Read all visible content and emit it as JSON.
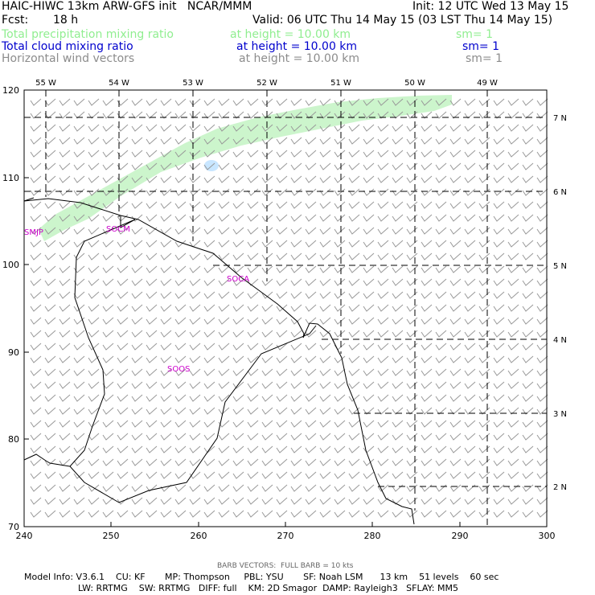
{
  "header": {
    "model_title": "HAIC-HIWC 13km ARW-GFS init   NCAR/MMM",
    "init": "Init: 12 UTC Wed 13 May 15",
    "fcst_label": "Fcst:",
    "fcst_value": "18 h",
    "valid": "Valid: 06 UTC Thu 14 May 15 (03 LST Thu 14 May 15)"
  },
  "fields": [
    {
      "name": "Total precipitation mixing ratio",
      "height": "at height = 10.00 km",
      "sm": "sm= 1",
      "color": "#90ee90"
    },
    {
      "name": "Total cloud mixing ratio",
      "height": "at height = 10.00 km",
      "sm": "sm= 1",
      "color": "#0000cd"
    },
    {
      "name": "Horizontal wind vectors",
      "height": "at height = 10.00 km",
      "sm": "sm= 1",
      "color": "#8c8c8c"
    }
  ],
  "map": {
    "top_labels": [
      "55 W",
      "54 W",
      "53 W",
      "52 W",
      "51 W",
      "50 W",
      "49 W"
    ],
    "right_labels": [
      "7 N",
      "6 N",
      "5 N",
      "4 N",
      "3 N",
      "2 N"
    ],
    "left_ticks": [
      "120",
      "110",
      "100",
      "90",
      "80",
      "70"
    ],
    "bottom_ticks": [
      "240",
      "250",
      "260",
      "270",
      "280",
      "290",
      "300"
    ],
    "stations": [
      "SMJP",
      "SOCM",
      "SOCA",
      "SOOS"
    ],
    "station_color": "#cc00cc"
  },
  "footer": {
    "barb_note": "BARB VECTORS:  FULL BARB = 10 kts",
    "model_info": "Model Info: V3.6.1    CU: KF       MP: Thompson     PBL: YSU       SF: Noah LSM      13 km    51 levels    60 sec",
    "physics": "LW: RRTMG    SW: RRTMG   DIFF: full    KM: 2D Smagor  DAMP: Rayleigh3   SFLAY: MM5"
  }
}
